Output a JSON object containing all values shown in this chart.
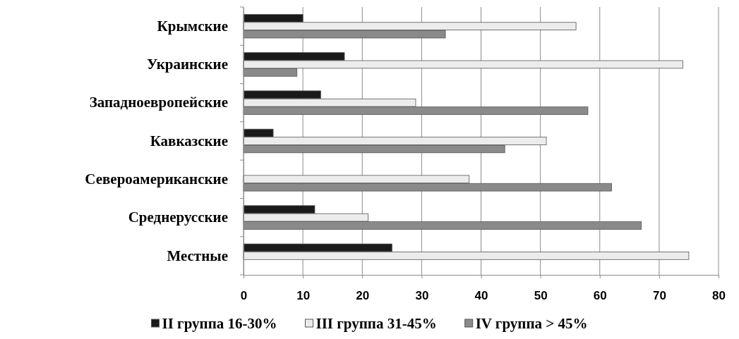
{
  "chart_data": {
    "type": "bar",
    "orientation": "horizontal",
    "categories": [
      "Крымские",
      "Украинские",
      "Западноевропейские",
      "Кавказские",
      "Североамериканские",
      "Среднерусские",
      "Местные"
    ],
    "series": [
      {
        "name": "II группа 16-30%",
        "color": "#1a1a1a",
        "values": [
          10,
          17,
          13,
          5,
          null,
          12,
          25
        ]
      },
      {
        "name": "III группа 31-45%",
        "color": "#ececec",
        "values": [
          56,
          74,
          29,
          51,
          38,
          21,
          75
        ]
      },
      {
        "name": "IV группа > 45%",
        "color": "#8a8a8a",
        "values": [
          34,
          9,
          58,
          44,
          62,
          67,
          null
        ]
      }
    ],
    "xlim": [
      0,
      80
    ],
    "xticks": [
      0,
      10,
      20,
      30,
      40,
      50,
      60,
      70,
      80
    ],
    "grid": "x",
    "legend": "bottom"
  }
}
